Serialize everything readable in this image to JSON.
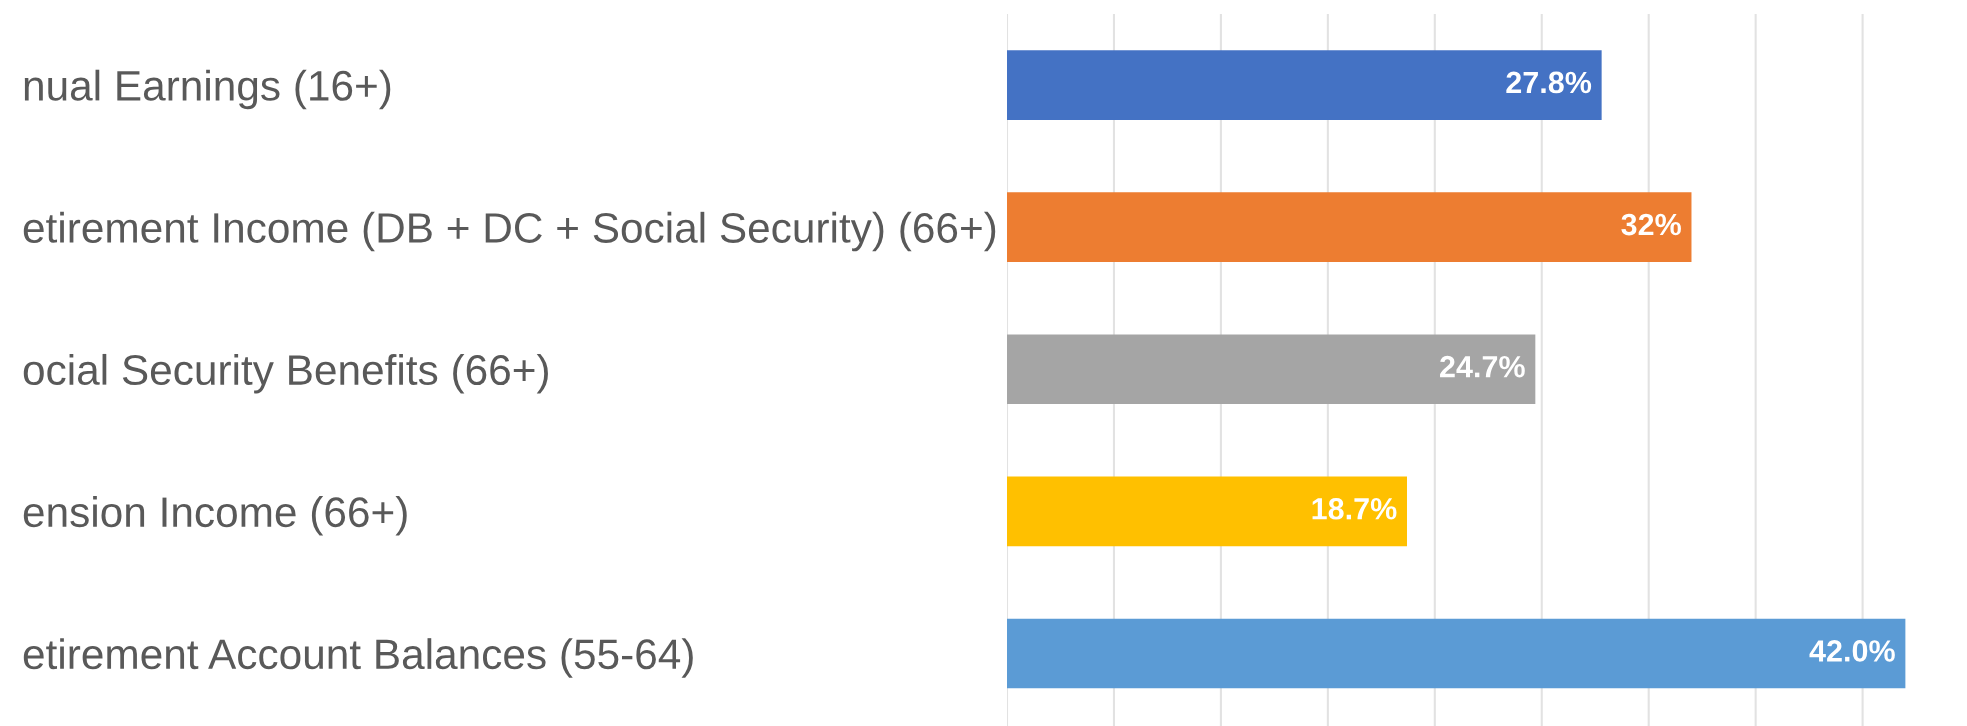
{
  "chart_data": {
    "type": "bar",
    "orientation": "horizontal",
    "categories": [
      "nual Earnings (16+)",
      "etirement Income (DB + DC + Social Security) (66+)",
      "ocial Security Benefits (66+)",
      "ension Income (66+)",
      "etirement Account Balances (55-64)"
    ],
    "values": [
      27.8,
      32,
      24.7,
      18.7,
      42.0
    ],
    "value_labels": [
      "27.8%",
      "32%",
      "24.7%",
      "18.7%",
      "42.0%"
    ],
    "colors": [
      "#4472c4",
      "#ed7d31",
      "#a5a5a5",
      "#ffc000",
      "#5b9bd5"
    ],
    "xticks": [
      {
        "value": 0,
        "label": null
      },
      {
        "value": 5,
        "label": null
      },
      {
        "value": 10,
        "label": null
      },
      {
        "value": 15,
        "label": null
      },
      {
        "value": 20,
        "label": null
      },
      {
        "value": 25,
        "label": null
      },
      {
        "value": 30,
        "label": null
      },
      {
        "value": 35,
        "label": null
      },
      {
        "value": 40,
        "label": null
      }
    ],
    "grid": "x",
    "tick_labels": "y"
  }
}
